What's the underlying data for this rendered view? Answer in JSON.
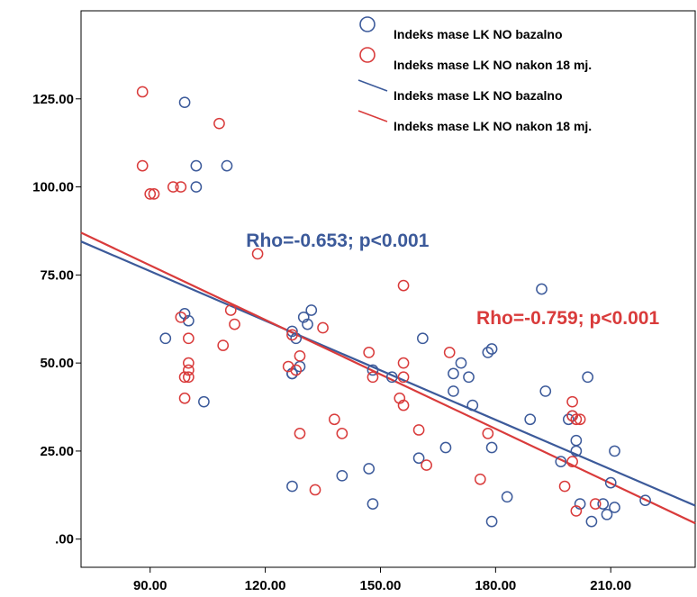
{
  "chart_data": {
    "type": "scatter",
    "title": "",
    "xlabel": "",
    "ylabel": "",
    "xlim": [
      72,
      232
    ],
    "ylim": [
      -8,
      150
    ],
    "x_ticks": [
      90,
      120,
      150,
      180,
      210
    ],
    "x_tick_labels": [
      "90.00",
      "120.00",
      "150.00",
      "180.00",
      "210.00"
    ],
    "y_ticks": [
      0,
      25,
      50,
      75,
      100,
      125
    ],
    "y_tick_labels": [
      ".00",
      "25.00",
      "50.00",
      "75.00",
      "100.00",
      "125.00"
    ],
    "grid": false,
    "legend_position": "top-right",
    "legend": [
      {
        "label": "Indeks mase LK NO bazalno",
        "kind": "marker",
        "color": "#3c5a9a"
      },
      {
        "label": "Indeks mase LK NO nakon 18 mj.",
        "kind": "marker",
        "color": "#d93b3b"
      },
      {
        "label": "Indeks mase LK NO bazalno",
        "kind": "line",
        "color": "#3c5a9a"
      },
      {
        "label": "Indeks mase LK NO nakon 18 mj.",
        "kind": "line",
        "color": "#d93b3b"
      }
    ],
    "series": [
      {
        "name": "Indeks mase LK NO bazalno",
        "color": "#3c5a9a",
        "points": [
          [
            99,
            124
          ],
          [
            102,
            106
          ],
          [
            110,
            106
          ],
          [
            102,
            100
          ],
          [
            94,
            57
          ],
          [
            99,
            64
          ],
          [
            100,
            62
          ],
          [
            104,
            39
          ],
          [
            127,
            59
          ],
          [
            128,
            57
          ],
          [
            129,
            49
          ],
          [
            130,
            63
          ],
          [
            131,
            61
          ],
          [
            132,
            65
          ],
          [
            127,
            47
          ],
          [
            127,
            47
          ],
          [
            127,
            15
          ],
          [
            140,
            18
          ],
          [
            147,
            20
          ],
          [
            148,
            10
          ],
          [
            148,
            48
          ],
          [
            153,
            46
          ],
          [
            161,
            57
          ],
          [
            160,
            23
          ],
          [
            167,
            26
          ],
          [
            169,
            47
          ],
          [
            169,
            42
          ],
          [
            171,
            50
          ],
          [
            173,
            46
          ],
          [
            174,
            38
          ],
          [
            178,
            53
          ],
          [
            179,
            54
          ],
          [
            179,
            26
          ],
          [
            179,
            5
          ],
          [
            183,
            12
          ],
          [
            189,
            34
          ],
          [
            192,
            71
          ],
          [
            193,
            42
          ],
          [
            197,
            22
          ],
          [
            199,
            34
          ],
          [
            200,
            35
          ],
          [
            201,
            28
          ],
          [
            201,
            25
          ],
          [
            202,
            10
          ],
          [
            204,
            46
          ],
          [
            205,
            5
          ],
          [
            208,
            10
          ],
          [
            209,
            7
          ],
          [
            210,
            16
          ],
          [
            211,
            25
          ],
          [
            211,
            9
          ],
          [
            219,
            11
          ]
        ]
      },
      {
        "name": "Indeks mase LK NO nakon 18 mj.",
        "color": "#d93b3b",
        "points": [
          [
            88,
            127
          ],
          [
            108,
            118
          ],
          [
            88,
            106
          ],
          [
            90,
            98
          ],
          [
            91,
            98
          ],
          [
            96,
            100
          ],
          [
            98,
            100
          ],
          [
            118,
            81
          ],
          [
            98,
            63
          ],
          [
            100,
            57
          ],
          [
            100,
            50
          ],
          [
            100,
            48
          ],
          [
            99,
            46
          ],
          [
            100,
            46
          ],
          [
            99,
            40
          ],
          [
            109,
            55
          ],
          [
            111,
            65
          ],
          [
            112,
            61
          ],
          [
            126,
            49
          ],
          [
            127,
            58
          ],
          [
            128,
            48
          ],
          [
            129,
            52
          ],
          [
            129,
            30
          ],
          [
            135,
            60
          ],
          [
            138,
            34
          ],
          [
            140,
            30
          ],
          [
            133,
            14
          ],
          [
            147,
            53
          ],
          [
            148,
            46
          ],
          [
            156,
            72
          ],
          [
            156,
            50
          ],
          [
            156,
            46
          ],
          [
            155,
            40
          ],
          [
            156,
            38
          ],
          [
            160,
            31
          ],
          [
            162,
            21
          ],
          [
            168,
            53
          ],
          [
            176,
            17
          ],
          [
            178,
            30
          ],
          [
            198,
            15
          ],
          [
            200,
            39
          ],
          [
            200,
            35
          ],
          [
            201,
            34
          ],
          [
            202,
            34
          ],
          [
            200,
            22
          ],
          [
            201,
            8
          ],
          [
            206,
            10
          ]
        ]
      }
    ],
    "fit_lines": [
      {
        "name": "Indeks mase LK NO bazalno",
        "color": "#3c5a9a",
        "x": [
          72,
          232
        ],
        "y": [
          84.5,
          9.5
        ]
      },
      {
        "name": "Indeks mase LK NO nakon 18 mj.",
        "color": "#d93b3b",
        "x": [
          72,
          232
        ],
        "y": [
          87.0,
          4.5
        ]
      }
    ],
    "annotations": [
      {
        "text": "Rho=-0.653; p<0.001",
        "color": "#3c5a9a",
        "x": 115,
        "y": 83
      },
      {
        "text": "Rho=-0.759; p<0.001",
        "color": "#d93b3b",
        "x": 175,
        "y": 61
      }
    ]
  }
}
